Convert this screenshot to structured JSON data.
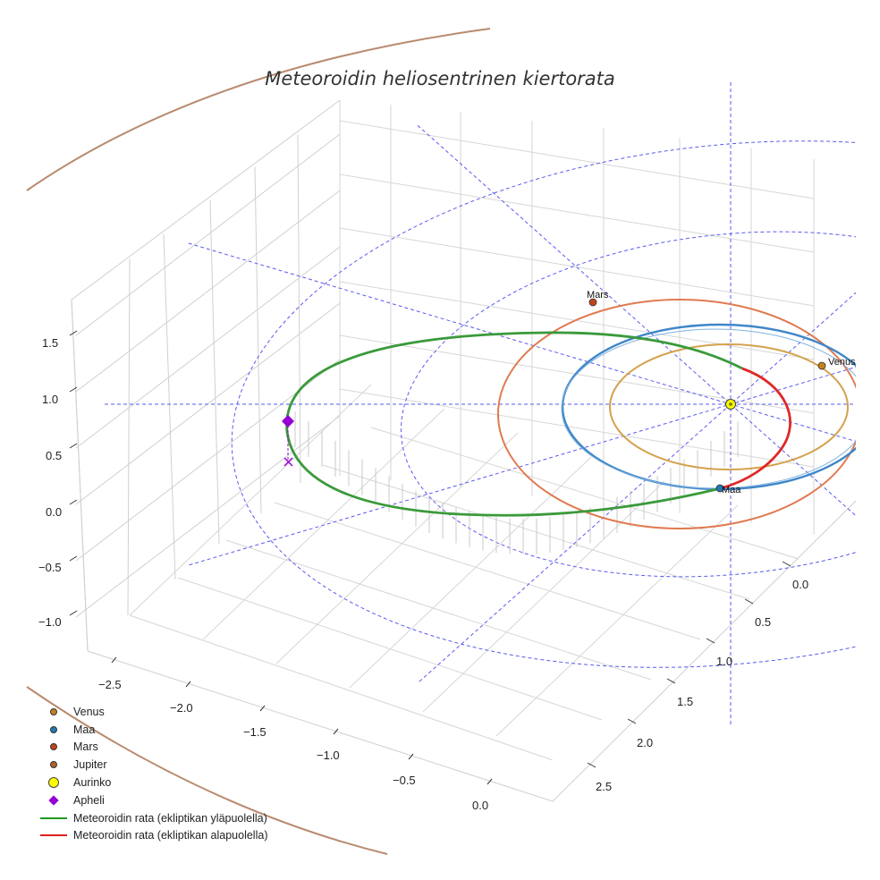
{
  "chart_data": {
    "type": "scatter3d",
    "title": "Meteoroidin heliosentrinen kiertorata",
    "axes": {
      "x_ticks": [
        "−2.5",
        "−2.0",
        "−1.5",
        "−1.0",
        "−0.5",
        "0.0"
      ],
      "y_ticks": [
        "0.0",
        "0.5",
        "1.0",
        "1.5",
        "2.0",
        "2.5"
      ],
      "z_ticks": [
        "1.5",
        "1.0",
        "0.5",
        "0.0",
        "−0.5",
        "−1.0"
      ],
      "grid": true
    },
    "orbits": [
      {
        "name": "Venus",
        "semi_major_au": 0.72,
        "color": "#d4a24e"
      },
      {
        "name": "Maa",
        "semi_major_au": 1.0,
        "color": "#3f86c9"
      },
      {
        "name": "Mars",
        "semi_major_au": 1.52,
        "color": "#e07a50"
      },
      {
        "name": "Jupiter",
        "semi_major_au": 5.2,
        "color": "#b88a6e"
      }
    ],
    "planet_labels": [
      "Venus",
      "Maa",
      "Mars"
    ],
    "meteoroid_orbit": {
      "above_ecliptic": {
        "name": "Meteoroidin rata (ekliptikan yläpuolella)",
        "color": "#3a9a3a"
      },
      "below_ecliptic": {
        "name": "Meteoroidin rata (ekliptikan alapuolella)",
        "color": "#e02828"
      },
      "aphelion_label": "Apheli"
    },
    "legend": [
      {
        "label": "Venus",
        "symbol": "dot",
        "color": "#c5801e"
      },
      {
        "label": "Maa",
        "symbol": "dot",
        "color": "#2277b4"
      },
      {
        "label": "Mars",
        "symbol": "dot",
        "color": "#c0441b"
      },
      {
        "label": "Jupiter",
        "symbol": "dot",
        "color": "#b0602a"
      },
      {
        "label": "Aurinko",
        "symbol": "bigdot",
        "color": "#ffff00"
      },
      {
        "label": "Apheli",
        "symbol": "diamond",
        "color": "#9400d3"
      },
      {
        "label": "Meteoroidin rata (ekliptikan yläpuolella)",
        "symbol": "line",
        "color": "#1f9a1f"
      },
      {
        "label": "Meteoroidin rata (ekliptikan alapuolella)",
        "symbol": "line",
        "color": "#e02020"
      }
    ]
  }
}
